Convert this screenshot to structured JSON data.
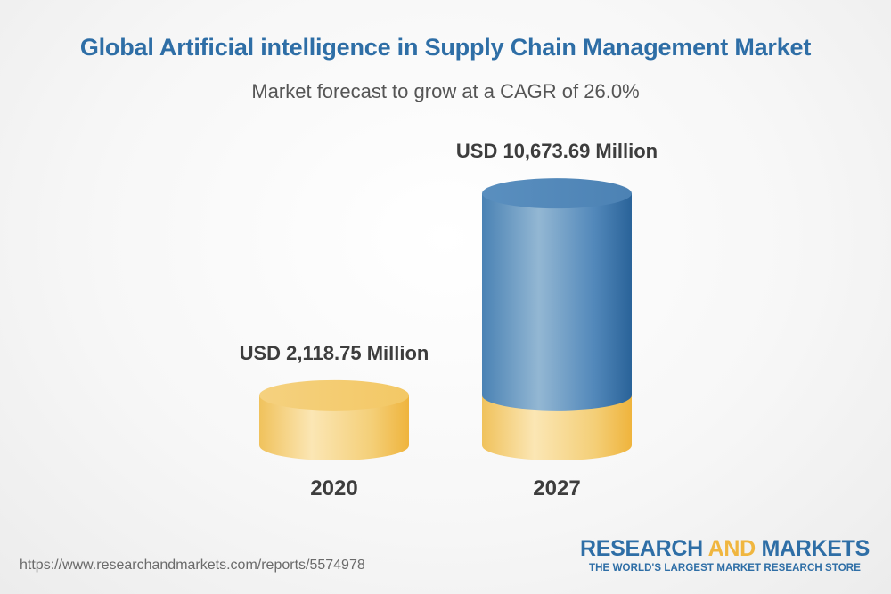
{
  "title": "Global Artificial intelligence in Supply Chain Management Market",
  "subtitle": "Market forecast to grow at a CAGR of 26.0%",
  "chart_data": {
    "type": "bar",
    "style": "3d-cylinder",
    "categories": [
      "2020",
      "2027"
    ],
    "values": [
      2118.75,
      10673.69
    ],
    "value_labels": [
      "USD 2,118.75 Million",
      "USD 10,673.69 Million"
    ],
    "unit": "USD Million",
    "cagr": "26.0%",
    "colors": {
      "base": "#f2c05a",
      "growth": "#4d86b8"
    }
  },
  "footer": {
    "url": "https://www.researchandmarkets.com/reports/5574978",
    "brand_part1": "RESEARCH ",
    "brand_part2": "AND",
    "brand_part3": " MARKETS",
    "brand_tagline": "THE WORLD'S LARGEST MARKET RESEARCH STORE"
  }
}
